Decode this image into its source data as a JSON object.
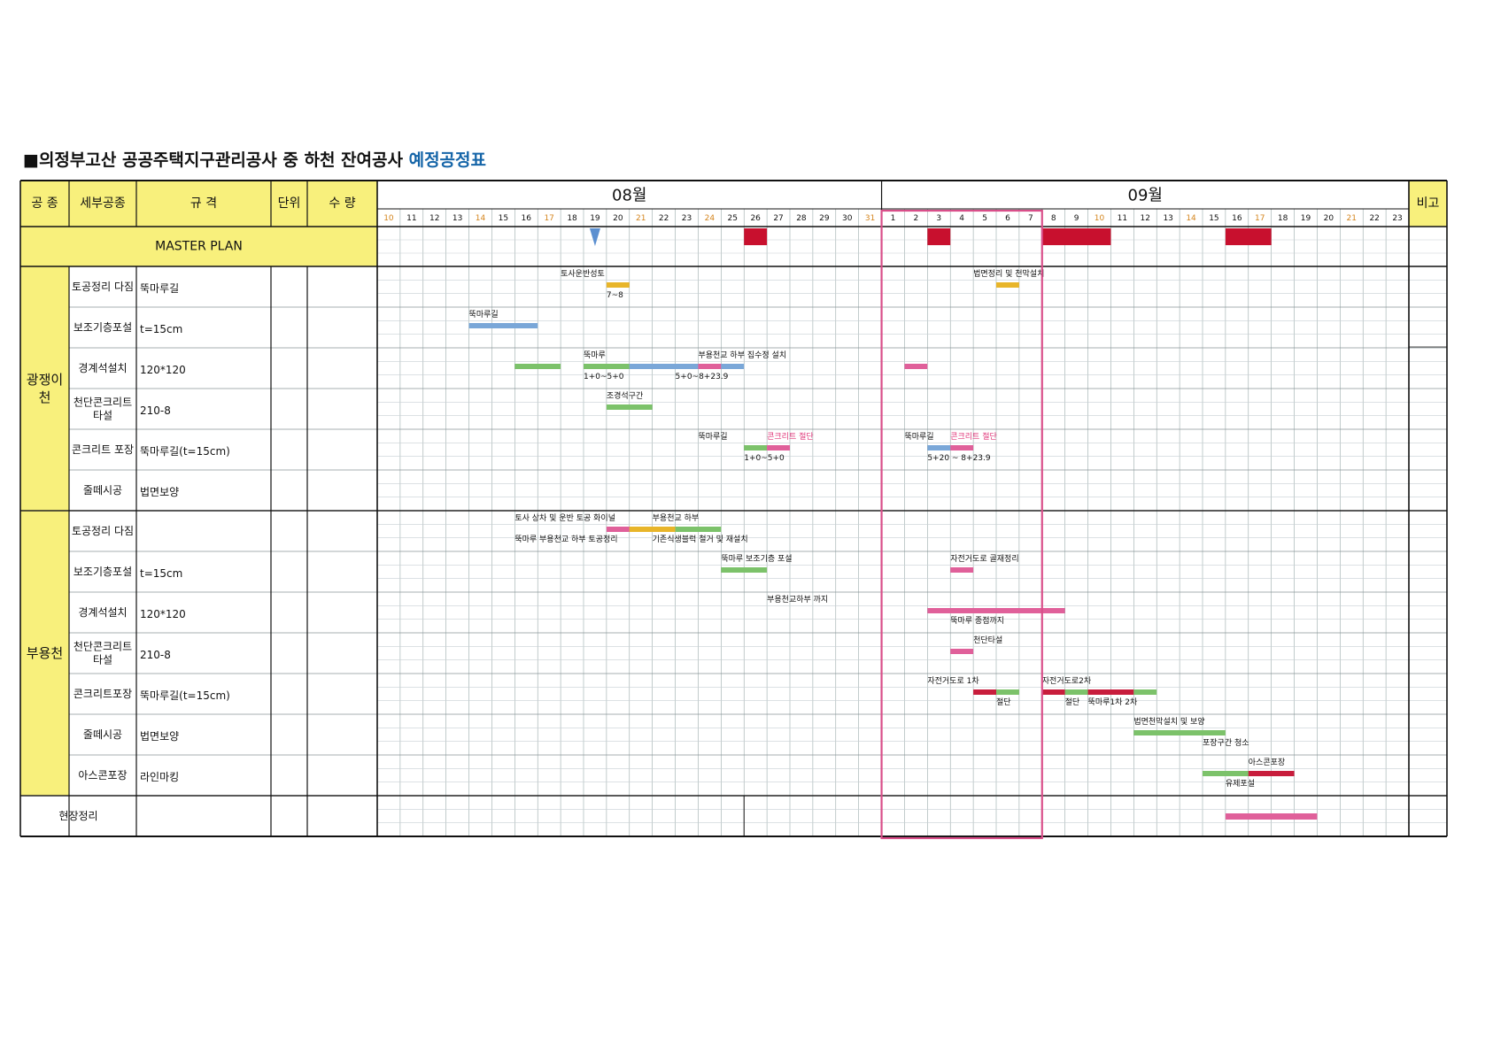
{
  "title": {
    "prefix": "■의정부고산 공공주택지구관리공사 중 하천 잔여공사 ",
    "highlight": "예정공정표"
  },
  "columns": {
    "work_type": "공 종",
    "sub_work": "세부공종",
    "spec": "규 격",
    "unit": "단위",
    "quantity": "수 량",
    "remarks": "비고"
  },
  "months": [
    {
      "label": "08월",
      "days": [
        "10",
        "11",
        "12",
        "13",
        "14",
        "15",
        "16",
        "17",
        "18",
        "19",
        "20",
        "21",
        "22",
        "23",
        "24",
        "25",
        "26",
        "27",
        "28",
        "29",
        "30",
        "31"
      ]
    },
    {
      "label": "09월",
      "days": [
        "1",
        "2",
        "3",
        "4",
        "5",
        "6",
        "7",
        "8",
        "9",
        "10",
        "11",
        "12",
        "13",
        "14",
        "15",
        "16",
        "17",
        "18",
        "19",
        "20",
        "21",
        "22",
        "23"
      ]
    }
  ],
  "weekend_days": [
    "10",
    "17",
    "24",
    "31",
    "14",
    "21"
  ],
  "master_plan": {
    "label": "MASTER PLAN",
    "milestone_day": "08-19",
    "blocks": [
      {
        "start": "08-26",
        "end": "08-26"
      },
      {
        "start": "09-03",
        "end": "09-03"
      },
      {
        "start": "09-08",
        "end": "09-10"
      },
      {
        "start": "09-16",
        "end": "09-17"
      }
    ]
  },
  "highlight_week": {
    "start": "09-01",
    "end": "09-07"
  },
  "groups": [
    {
      "name": "광쟁이천",
      "rows": [
        {
          "sub": "토공정리 다짐",
          "spec": "뚝마루길",
          "bars": [
            {
              "start": "08-20",
              "end": "08-20",
              "color": "yellow"
            },
            {
              "start": "09-06",
              "end": "09-06",
              "color": "yellow"
            }
          ],
          "labels": [
            {
              "text": "토사운반성토",
              "day": "08-18",
              "pos": "above"
            },
            {
              "text": "7~8",
              "day": "08-20",
              "pos": "below"
            },
            {
              "text": "법면정리 및 천막설치",
              "day": "09-05",
              "pos": "above"
            }
          ]
        },
        {
          "sub": "보조기층포설",
          "spec": "t=15cm",
          "bars": [
            {
              "start": "08-14",
              "end": "08-16",
              "color": "blue"
            }
          ],
          "labels": [
            {
              "text": "뚝마루길",
              "day": "08-14",
              "pos": "above"
            }
          ]
        },
        {
          "sub": "경계석설치",
          "spec": "120*120",
          "bars": [
            {
              "start": "08-16",
              "end": "08-17",
              "color": "green"
            },
            {
              "start": "08-19",
              "end": "08-20",
              "color": "green"
            },
            {
              "start": "08-21",
              "end": "08-23",
              "color": "blue"
            },
            {
              "start": "08-24",
              "end": "08-24",
              "color": "pink"
            },
            {
              "start": "08-25",
              "end": "08-25",
              "color": "blue"
            },
            {
              "start": "09-02",
              "end": "09-02",
              "color": "pink"
            }
          ],
          "labels": [
            {
              "text": "뚝마루",
              "day": "08-19",
              "pos": "above"
            },
            {
              "text": "부용천교 하부 집수정 설치",
              "day": "08-24",
              "pos": "above"
            },
            {
              "text": "1+0~5+0",
              "day": "08-19",
              "pos": "below"
            },
            {
              "text": "5+0~8+23.9",
              "day": "08-23",
              "pos": "below"
            }
          ]
        },
        {
          "sub": "천단콘크리트\n타설",
          "spec": "210-8",
          "bars": [
            {
              "start": "08-20",
              "end": "08-21",
              "color": "green"
            }
          ],
          "labels": [
            {
              "text": "조경석구간",
              "day": "08-20",
              "pos": "above"
            }
          ]
        },
        {
          "sub": "콘크리트 포장",
          "spec": "뚝마루길(t=15cm)",
          "bars": [
            {
              "start": "08-26",
              "end": "08-26",
              "color": "green"
            },
            {
              "start": "08-27",
              "end": "08-27",
              "color": "pink"
            },
            {
              "start": "09-03",
              "end": "09-03",
              "color": "blue"
            },
            {
              "start": "09-04",
              "end": "09-04",
              "color": "pink"
            }
          ],
          "labels": [
            {
              "text": "뚝마루길",
              "day": "08-24",
              "pos": "above"
            },
            {
              "text": "콘크리트 절단",
              "day": "08-27",
              "pos": "above",
              "accent": true
            },
            {
              "text": "1+0~5+0",
              "day": "08-26",
              "pos": "below"
            },
            {
              "text": "뚝마루길",
              "day": "09-02",
              "pos": "above"
            },
            {
              "text": "콘크리트 절단",
              "day": "09-04",
              "pos": "above",
              "accent": true
            },
            {
              "text": "5+20 ~ 8+23.9",
              "day": "09-03",
              "pos": "below"
            }
          ]
        },
        {
          "sub": "줄떼시공",
          "spec": "법면보양",
          "bars": [],
          "labels": []
        }
      ]
    },
    {
      "name": "부용천",
      "rows": [
        {
          "sub": "토공정리 다짐",
          "spec": "",
          "bars": [
            {
              "start": "08-20",
              "end": "08-20",
              "color": "pink"
            },
            {
              "start": "08-21",
              "end": "08-22",
              "color": "yellow"
            },
            {
              "start": "08-23",
              "end": "08-24",
              "color": "green"
            }
          ],
          "labels": [
            {
              "text": "토사 상차 및 운반 토공 화이널",
              "day": "08-16",
              "pos": "above"
            },
            {
              "text": "부용천교 하부",
              "day": "08-22",
              "pos": "above"
            },
            {
              "text": "뚝마루  부용천교 하부 토공정리",
              "day": "08-16",
              "pos": "below"
            },
            {
              "text": "기존식생블럭 철거 및 재설치",
              "day": "08-22",
              "pos": "below"
            }
          ]
        },
        {
          "sub": "보조기층포설",
          "spec": "t=15cm",
          "bars": [
            {
              "start": "08-25",
              "end": "08-26",
              "color": "green"
            },
            {
              "start": "09-04",
              "end": "09-04",
              "color": "pink"
            }
          ],
          "labels": [
            {
              "text": "뚝마루 보조기층 포설",
              "day": "08-25",
              "pos": "above"
            },
            {
              "text": "자전거도로 골재정리",
              "day": "09-04",
              "pos": "above"
            }
          ]
        },
        {
          "sub": "경계석설치",
          "spec": "120*120",
          "bars": [
            {
              "start": "09-03",
              "end": "09-08",
              "color": "pink"
            }
          ],
          "labels": [
            {
              "text": "부용천교하부 까지",
              "day": "08-27",
              "pos": "above"
            },
            {
              "text": "뚝마루 종점까지",
              "day": "09-04",
              "pos": "below"
            }
          ]
        },
        {
          "sub": "천단콘크리트\n타설",
          "spec": "210-8",
          "bars": [
            {
              "start": "09-04",
              "end": "09-04",
              "color": "pink"
            }
          ],
          "labels": [
            {
              "text": "천단타설",
              "day": "09-05",
              "pos": "above"
            }
          ]
        },
        {
          "sub": "콘크리트포장",
          "spec": "뚝마루길(t=15cm)",
          "bars": [
            {
              "start": "09-05",
              "end": "09-05",
              "color": "red"
            },
            {
              "start": "09-06",
              "end": "09-06",
              "color": "green"
            },
            {
              "start": "09-08",
              "end": "09-08",
              "color": "red"
            },
            {
              "start": "09-09",
              "end": "09-09",
              "color": "green"
            },
            {
              "start": "09-10",
              "end": "09-11",
              "color": "red"
            },
            {
              "start": "09-12",
              "end": "09-12",
              "color": "green"
            }
          ],
          "labels": [
            {
              "text": "자전거도로 1차",
              "day": "09-03",
              "pos": "above"
            },
            {
              "text": "자전거도로2차",
              "day": "09-08",
              "pos": "above"
            },
            {
              "text": "절단",
              "day": "09-06",
              "pos": "below"
            },
            {
              "text": "절단",
              "day": "09-09",
              "pos": "below"
            },
            {
              "text": "뚝마루1차 2차",
              "day": "09-10",
              "pos": "below"
            }
          ]
        },
        {
          "sub": "줄떼시공",
          "spec": "법면보양",
          "bars": [
            {
              "start": "09-12",
              "end": "09-15",
              "color": "green"
            }
          ],
          "labels": [
            {
              "text": "법면천막설치 및 보양",
              "day": "09-12",
              "pos": "above"
            },
            {
              "text": "포장구간 청소",
              "day": "09-15",
              "pos": "below"
            }
          ]
        },
        {
          "sub": "아스콘포장",
          "spec": "라인마킹",
          "bars": [
            {
              "start": "09-15",
              "end": "09-16",
              "color": "green"
            },
            {
              "start": "09-17",
              "end": "09-18",
              "color": "red"
            }
          ],
          "labels": [
            {
              "text": "아스콘포장",
              "day": "09-17",
              "pos": "above"
            },
            {
              "text": "유제포설",
              "day": "09-16",
              "pos": "below"
            }
          ]
        }
      ]
    }
  ],
  "site_cleanup": {
    "label": "현장정리",
    "bars": [
      {
        "start": "09-16",
        "end": "09-19",
        "color": "pink"
      }
    ]
  },
  "colors": {
    "yellow_fill": "#f8f07c",
    "master_red": "#c8102e",
    "highlight": "#d94f8a",
    "bar_green": "#7cc26a",
    "bar_blue": "#7aa7d8",
    "bar_pink": "#e0609a",
    "bar_yellow": "#e8b52a",
    "bar_red": "#c81d3c",
    "weekend_text": "#d4841c",
    "accent_text": "#e0387a",
    "title_highlight": "#1565a8"
  }
}
